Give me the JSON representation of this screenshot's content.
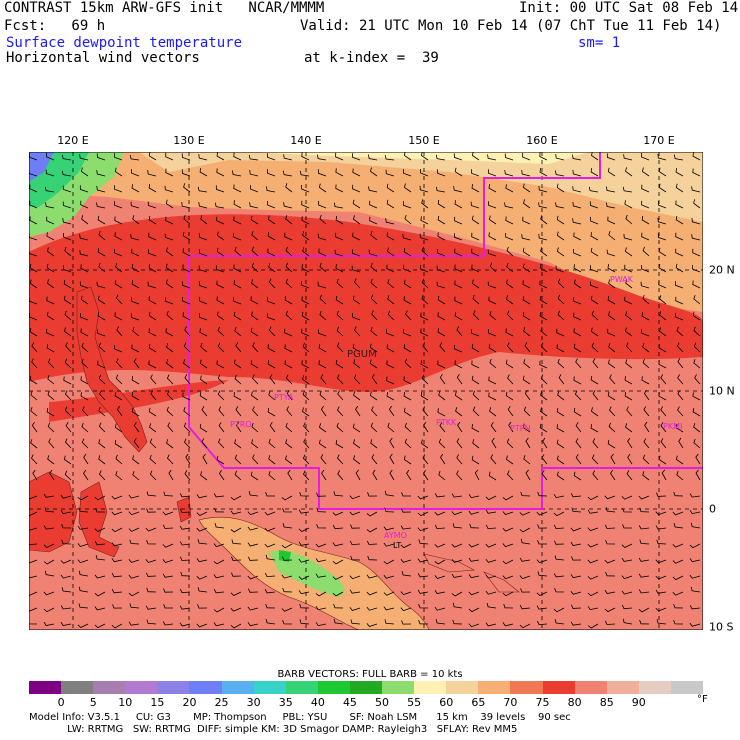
{
  "header": {
    "line1_left": "CONTRAST 15km ARW-GFS init   NCAR/MMMM",
    "line1_right": "Init: 00 UTC Sat 08 Feb 14",
    "fcst_label": "Fcst:   69 h",
    "valid": "Valid: 21 UTC Mon 10 Feb 14 (07 ChT Tue 11 Feb 14)",
    "field": "Surface dewpoint temperature",
    "smoothing": "sm= 1",
    "vectors": "Horizontal wind vectors",
    "kindex": "at k-index =  39"
  },
  "axes": {
    "lon_labels": [
      "120 E",
      "130 E",
      "140 E",
      "150 E",
      "160 E",
      "170 E"
    ],
    "lat_labels": [
      "20 N",
      "10 N",
      "0",
      "10 S"
    ]
  },
  "stations": [
    {
      "id": "PGUM",
      "label": "PGUM"
    },
    {
      "id": "PTYA",
      "label": "PTYA"
    },
    {
      "id": "PTRO",
      "label": "PTRO"
    },
    {
      "id": "PTKK",
      "label": "PTKK"
    },
    {
      "id": "PTPN",
      "label": "PTPN"
    },
    {
      "id": "PKMJ",
      "label": "PKMJ"
    },
    {
      "id": "PWAK",
      "label": "PWAK"
    },
    {
      "id": "AYMO",
      "label": "AYMO"
    },
    {
      "id": "LT",
      "label": "LT"
    }
  ],
  "legend": {
    "barb_title": "BARB VECTORS:  FULL BARB = 10 kts",
    "unit": "°F",
    "ticks": [
      "0",
      "5",
      "10",
      "15",
      "20",
      "25",
      "30",
      "35",
      "40",
      "45",
      "50",
      "55",
      "60",
      "65",
      "70",
      "75",
      "80",
      "85",
      "90"
    ],
    "colors": [
      "#7d0083",
      "#808080",
      "#a67fb0",
      "#b47ad2",
      "#8c82e6",
      "#6e7ef5",
      "#5aaff0",
      "#39d2c8",
      "#37d275",
      "#1ec832",
      "#23aa23",
      "#8cdc6e",
      "#fff0b4",
      "#f5d29b",
      "#f5af73",
      "#f07855",
      "#eb3c32",
      "#f08273",
      "#f0af9b",
      "#e6cdc3",
      "#c8c8c8"
    ]
  },
  "footer": {
    "line1": "Model Info: V3.5.1     CU: G3       MP: Thompson     PBL: YSU       SF: Noah LSM      15 km    39 levels    90 sec",
    "line2": "            LW: RRTMG   SW: RRTMG  DIFF: simple KM: 3D Smagor DAMP: Rayleigh3   SFLAY: Rev MM5"
  }
}
